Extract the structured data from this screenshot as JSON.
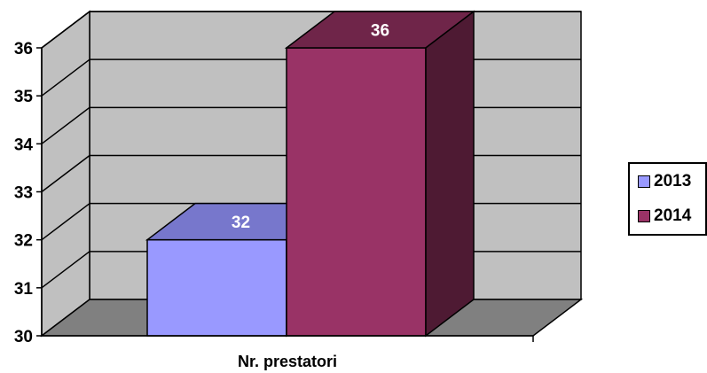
{
  "chart_data": {
    "type": "bar",
    "style": "3d-clustered-column",
    "categories": [
      "Nr. prestatori"
    ],
    "series": [
      {
        "name": "2013",
        "values": [
          32
        ],
        "color": "#9999ff",
        "top_color": "#7777cc",
        "side_color": "#5c5c99"
      },
      {
        "name": "2014",
        "values": [
          36
        ],
        "color": "#993366",
        "top_color": "#6f2549",
        "side_color": "#4e1a33"
      }
    ],
    "data_labels": [
      "32",
      "36"
    ],
    "y_ticks": [
      "30",
      "31",
      "32",
      "33",
      "34",
      "35",
      "36"
    ],
    "ylim": [
      30,
      36
    ],
    "xlabel": "Nr. prestatori",
    "grid": true,
    "legend_position": "right",
    "wall_color": "#c0c0c0",
    "floor_color": "#808080"
  }
}
